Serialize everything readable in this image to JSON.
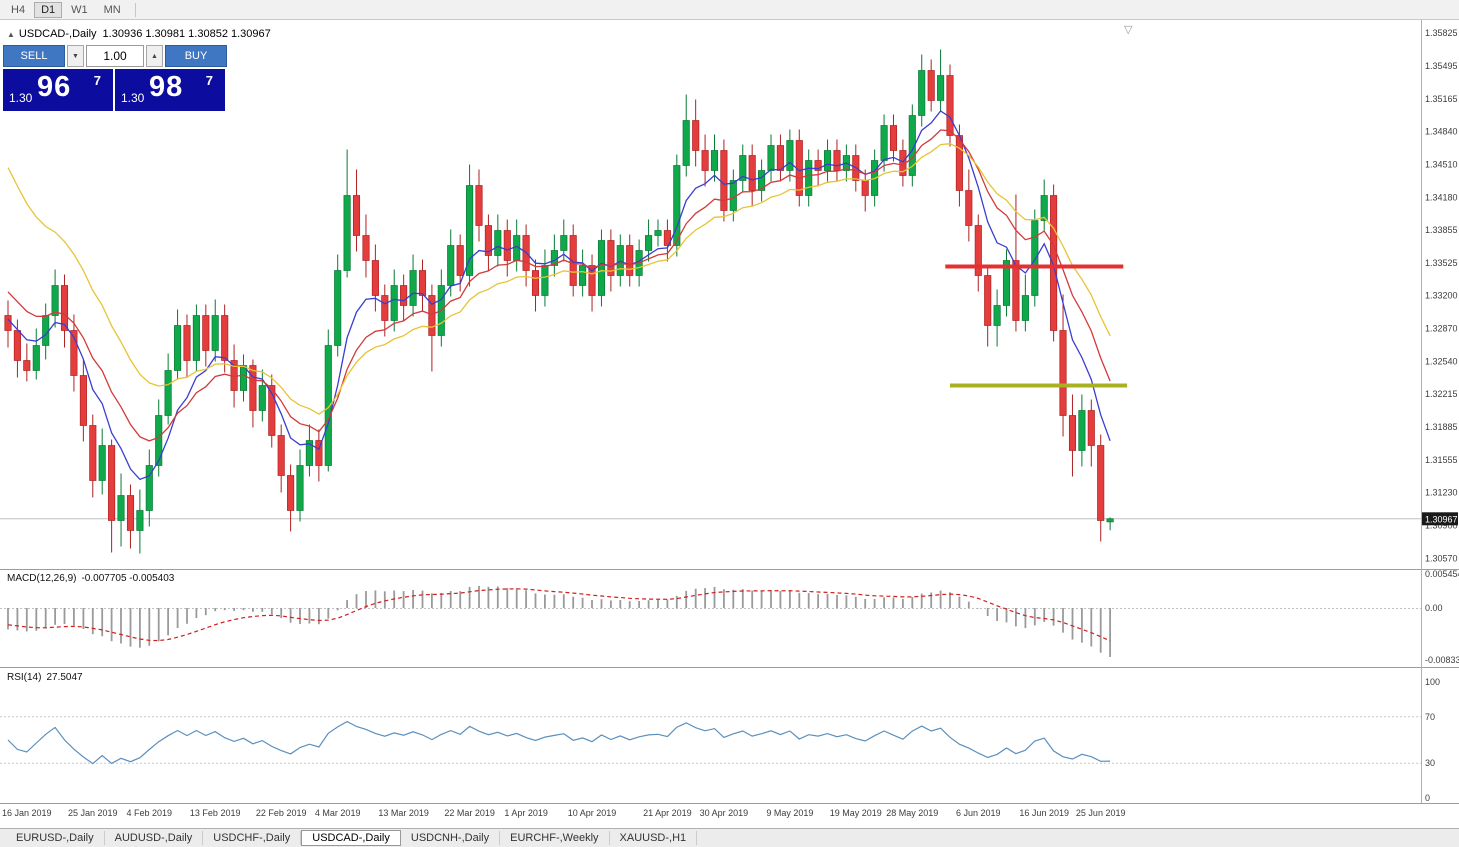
{
  "toolbar": {
    "timeframes": [
      "H4",
      "D1",
      "W1",
      "MN"
    ],
    "active": "D1"
  },
  "chart_header": {
    "marker": "▲",
    "title": "USDCAD-,Daily",
    "ohlc": "1.30936 1.30981 1.30852 1.30967",
    "scroll_marker": "▽"
  },
  "trade_panel": {
    "sell_label": "SELL",
    "buy_label": "BUY",
    "volume": "1.00",
    "spin_down": "▼",
    "spin_up": "▲",
    "sell_price": {
      "small": "1.30",
      "big": "96",
      "sup": "7"
    },
    "buy_price": {
      "small": "1.30",
      "big": "98",
      "sup": "7"
    }
  },
  "indicators": {
    "macd": {
      "label": "MACD(12,26,9)",
      "values": "-0.007705 -0.005403",
      "scale": [
        "0.0054545",
        "0.00",
        "-0.008332"
      ]
    },
    "rsi": {
      "label": "RSI(14)",
      "value": "27.5047",
      "scale": [
        "100",
        "70",
        "30",
        "0"
      ]
    }
  },
  "price_scale": {
    "bid_badge": "1.30967",
    "ticks": [
      "1.35825",
      "1.35495",
      "1.35165",
      "1.34840",
      "1.34510",
      "1.34180",
      "1.33855",
      "1.33525",
      "1.33200",
      "1.32870",
      "1.32540",
      "1.32215",
      "1.31885",
      "1.31555",
      "1.31230",
      "1.30900",
      "1.30570"
    ]
  },
  "tabs": {
    "items": [
      "EURUSD-,Daily",
      "AUDUSD-,Daily",
      "USDCHF-,Daily",
      "USDCAD-,Daily",
      "USDCNH-,Daily",
      "EURCHF-,Weekly",
      "XAUUSD-,H1"
    ],
    "active_index": 3
  },
  "chart_data": {
    "type": "candlestick",
    "title": "USDCAD-,Daily",
    "symbol": "USDCAD-",
    "timeframe": "Daily",
    "bid": 1.30967,
    "current_ohlc": {
      "open": 1.30936,
      "high": 1.30981,
      "low": 1.30852,
      "close": 1.30967
    },
    "y_axis": {
      "top": 1.35825,
      "bottom": 1.3057,
      "grid": "off"
    },
    "candles": [
      [
        "2019.01.14",
        1.33,
        1.3315,
        1.3268,
        1.3285
      ],
      [
        "2019.01.15",
        1.3285,
        1.3296,
        1.3238,
        1.3255
      ],
      [
        "2019.01.16",
        1.3255,
        1.3272,
        1.3234,
        1.3245
      ],
      [
        "2019.01.17",
        1.3245,
        1.3287,
        1.3236,
        1.327
      ],
      [
        "2019.01.18",
        1.327,
        1.3312,
        1.3256,
        1.33
      ],
      [
        "2019.01.21",
        1.33,
        1.3346,
        1.3288,
        1.333
      ],
      [
        "2019.01.22",
        1.333,
        1.3341,
        1.3268,
        1.3285
      ],
      [
        "2019.01.23",
        1.3285,
        1.3301,
        1.3224,
        1.324
      ],
      [
        "2019.01.24",
        1.324,
        1.3256,
        1.3174,
        1.319
      ],
      [
        "2019.01.25",
        1.319,
        1.3201,
        1.3118,
        1.3135
      ],
      [
        "2019.01.28",
        1.3135,
        1.3187,
        1.3121,
        1.317
      ],
      [
        "2019.01.29",
        1.317,
        1.3176,
        1.3063,
        1.3095
      ],
      [
        "2019.01.30",
        1.3095,
        1.3142,
        1.3069,
        1.312
      ],
      [
        "2019.01.31",
        1.312,
        1.3131,
        1.3067,
        1.3085
      ],
      [
        "2019.02.01",
        1.3085,
        1.3126,
        1.3062,
        1.3105
      ],
      [
        "2019.02.04",
        1.3105,
        1.3166,
        1.3089,
        1.315
      ],
      [
        "2019.02.05",
        1.315,
        1.3216,
        1.3139,
        1.32
      ],
      [
        "2019.02.06",
        1.32,
        1.3262,
        1.3191,
        1.3245
      ],
      [
        "2019.02.07",
        1.3245,
        1.3306,
        1.3236,
        1.329
      ],
      [
        "2019.02.08",
        1.329,
        1.3301,
        1.3238,
        1.3255
      ],
      [
        "2019.02.11",
        1.3255,
        1.3311,
        1.3244,
        1.33
      ],
      [
        "2019.02.12",
        1.33,
        1.3311,
        1.3249,
        1.3265
      ],
      [
        "2019.02.13",
        1.3265,
        1.3316,
        1.3254,
        1.33
      ],
      [
        "2019.02.14",
        1.33,
        1.3311,
        1.3243,
        1.3255
      ],
      [
        "2019.02.15",
        1.3255,
        1.3271,
        1.3208,
        1.3225
      ],
      [
        "2019.02.18",
        1.3225,
        1.3261,
        1.3214,
        1.325
      ],
      [
        "2019.02.19",
        1.325,
        1.3256,
        1.3188,
        1.3205
      ],
      [
        "2019.02.20",
        1.3205,
        1.3246,
        1.3194,
        1.323
      ],
      [
        "2019.02.21",
        1.323,
        1.3241,
        1.3168,
        1.318
      ],
      [
        "2019.02.22",
        1.318,
        1.3191,
        1.3123,
        1.314
      ],
      [
        "2019.02.25",
        1.314,
        1.3151,
        1.3084,
        1.3105
      ],
      [
        "2019.02.26",
        1.3105,
        1.3166,
        1.3094,
        1.315
      ],
      [
        "2019.02.27",
        1.315,
        1.3191,
        1.3139,
        1.3175
      ],
      [
        "2019.02.28",
        1.3175,
        1.3186,
        1.3134,
        1.315
      ],
      [
        "2019.03.01",
        1.315,
        1.3286,
        1.3144,
        1.327
      ],
      [
        "2019.03.04",
        1.327,
        1.3361,
        1.3259,
        1.3345
      ],
      [
        "2019.03.05",
        1.3345,
        1.3466,
        1.3338,
        1.342
      ],
      [
        "2019.03.06",
        1.342,
        1.3446,
        1.3364,
        1.338
      ],
      [
        "2019.03.07",
        1.338,
        1.3401,
        1.3338,
        1.3355
      ],
      [
        "2019.03.08",
        1.3355,
        1.3371,
        1.3304,
        1.332
      ],
      [
        "2019.03.11",
        1.332,
        1.3331,
        1.3279,
        1.3295
      ],
      [
        "2019.03.12",
        1.3295,
        1.3346,
        1.3284,
        1.333
      ],
      [
        "2019.03.13",
        1.333,
        1.3341,
        1.3294,
        1.331
      ],
      [
        "2019.03.14",
        1.331,
        1.3361,
        1.3299,
        1.3345
      ],
      [
        "2019.03.15",
        1.3345,
        1.3356,
        1.3304,
        1.332
      ],
      [
        "2019.03.18",
        1.332,
        1.3331,
        1.3244,
        1.328
      ],
      [
        "2019.03.19",
        1.328,
        1.3346,
        1.3269,
        1.333
      ],
      [
        "2019.03.20",
        1.333,
        1.3386,
        1.3319,
        1.337
      ],
      [
        "2019.03.21",
        1.337,
        1.3381,
        1.3324,
        1.334
      ],
      [
        "2019.03.22",
        1.334,
        1.3451,
        1.3329,
        1.343
      ],
      [
        "2019.03.25",
        1.343,
        1.3446,
        1.3374,
        1.339
      ],
      [
        "2019.03.26",
        1.339,
        1.3401,
        1.3344,
        1.336
      ],
      [
        "2019.03.27",
        1.336,
        1.3401,
        1.3349,
        1.3385
      ],
      [
        "2019.03.28",
        1.3385,
        1.3396,
        1.3339,
        1.3355
      ],
      [
        "2019.03.29",
        1.3355,
        1.3396,
        1.3344,
        1.338
      ],
      [
        "2019.04.01",
        1.338,
        1.3391,
        1.3329,
        1.3345
      ],
      [
        "2019.04.02",
        1.3345,
        1.3356,
        1.3304,
        1.332
      ],
      [
        "2019.04.03",
        1.332,
        1.3366,
        1.3309,
        1.335
      ],
      [
        "2019.04.04",
        1.335,
        1.3381,
        1.3339,
        1.3365
      ],
      [
        "2019.04.05",
        1.3365,
        1.3396,
        1.3354,
        1.338
      ],
      [
        "2019.04.08",
        1.338,
        1.3391,
        1.3319,
        1.333
      ],
      [
        "2019.04.09",
        1.333,
        1.3366,
        1.3319,
        1.335
      ],
      [
        "2019.04.10",
        1.335,
        1.3361,
        1.3304,
        1.332
      ],
      [
        "2019.04.11",
        1.332,
        1.3386,
        1.3309,
        1.3375
      ],
      [
        "2019.04.12",
        1.3375,
        1.3386,
        1.3324,
        1.334
      ],
      [
        "2019.04.15",
        1.334,
        1.3381,
        1.3329,
        1.337
      ],
      [
        "2019.04.16",
        1.337,
        1.3381,
        1.3329,
        1.334
      ],
      [
        "2019.04.17",
        1.334,
        1.3376,
        1.3329,
        1.3365
      ],
      [
        "2019.04.18",
        1.3365,
        1.3396,
        1.3354,
        1.338
      ],
      [
        "2019.04.19",
        1.338,
        1.3396,
        1.3369,
        1.3385
      ],
      [
        "2019.04.22",
        1.3385,
        1.3396,
        1.3354,
        1.337
      ],
      [
        "2019.04.23",
        1.337,
        1.3461,
        1.3359,
        1.345
      ],
      [
        "2019.04.24",
        1.345,
        1.3521,
        1.3439,
        1.3495
      ],
      [
        "2019.04.25",
        1.3495,
        1.3516,
        1.3449,
        1.3465
      ],
      [
        "2019.04.26",
        1.3465,
        1.3481,
        1.3429,
        1.3445
      ],
      [
        "2019.04.29",
        1.3445,
        1.3481,
        1.3434,
        1.3465
      ],
      [
        "2019.04.30",
        1.3465,
        1.3476,
        1.3394,
        1.3405
      ],
      [
        "2019.05.01",
        1.3405,
        1.3446,
        1.3394,
        1.3435
      ],
      [
        "2019.05.02",
        1.3435,
        1.3471,
        1.3424,
        1.346
      ],
      [
        "2019.05.03",
        1.346,
        1.3471,
        1.3409,
        1.3425
      ],
      [
        "2019.05.06",
        1.3425,
        1.3456,
        1.3414,
        1.3445
      ],
      [
        "2019.05.07",
        1.3445,
        1.3481,
        1.3434,
        1.347
      ],
      [
        "2019.05.08",
        1.347,
        1.3481,
        1.3434,
        1.3445
      ],
      [
        "2019.05.09",
        1.3445,
        1.3486,
        1.3434,
        1.3475
      ],
      [
        "2019.05.10",
        1.3475,
        1.3486,
        1.3409,
        1.342
      ],
      [
        "2019.05.13",
        1.342,
        1.3466,
        1.3409,
        1.3455
      ],
      [
        "2019.05.14",
        1.3455,
        1.3466,
        1.3429,
        1.3445
      ],
      [
        "2019.05.15",
        1.3445,
        1.3476,
        1.3434,
        1.3465
      ],
      [
        "2019.05.16",
        1.3465,
        1.3476,
        1.3434,
        1.3445
      ],
      [
        "2019.05.17",
        1.3445,
        1.3471,
        1.3434,
        1.346
      ],
      [
        "2019.05.20",
        1.346,
        1.3471,
        1.3424,
        1.3435
      ],
      [
        "2019.05.21",
        1.3435,
        1.3446,
        1.3404,
        1.342
      ],
      [
        "2019.05.22",
        1.342,
        1.3466,
        1.3409,
        1.3455
      ],
      [
        "2019.05.23",
        1.3455,
        1.3501,
        1.3444,
        1.349
      ],
      [
        "2019.05.24",
        1.349,
        1.3501,
        1.3454,
        1.3465
      ],
      [
        "2019.05.27",
        1.3465,
        1.3476,
        1.3429,
        1.344
      ],
      [
        "2019.05.28",
        1.344,
        1.3511,
        1.3429,
        1.35
      ],
      [
        "2019.05.29",
        1.35,
        1.3561,
        1.3489,
        1.3545
      ],
      [
        "2019.05.30",
        1.3545,
        1.3556,
        1.3504,
        1.3515
      ],
      [
        "2019.05.31",
        1.3515,
        1.3566,
        1.3504,
        1.354
      ],
      [
        "2019.06.03",
        1.354,
        1.3551,
        1.3469,
        1.348
      ],
      [
        "2019.06.04",
        1.348,
        1.3491,
        1.3409,
        1.3425
      ],
      [
        "2019.06.05",
        1.3425,
        1.3446,
        1.3374,
        1.339
      ],
      [
        "2019.06.06",
        1.339,
        1.3401,
        1.3324,
        1.334
      ],
      [
        "2019.06.07",
        1.334,
        1.3351,
        1.3269,
        1.329
      ],
      [
        "2019.06.10",
        1.329,
        1.3326,
        1.3269,
        1.331
      ],
      [
        "2019.06.11",
        1.331,
        1.3366,
        1.3299,
        1.3355
      ],
      [
        "2019.06.12",
        1.3355,
        1.3421,
        1.3284,
        1.3295
      ],
      [
        "2019.06.13",
        1.3295,
        1.3341,
        1.3284,
        1.332
      ],
      [
        "2019.06.14",
        1.332,
        1.3406,
        1.3309,
        1.3395
      ],
      [
        "2019.06.17",
        1.3395,
        1.3436,
        1.3384,
        1.342
      ],
      [
        "2019.06.18",
        1.342,
        1.3431,
        1.3274,
        1.3285
      ],
      [
        "2019.06.19",
        1.3285,
        1.3321,
        1.3179,
        1.32
      ],
      [
        "2019.06.20",
        1.32,
        1.3221,
        1.3139,
        1.3165
      ],
      [
        "2019.06.21",
        1.3165,
        1.3221,
        1.3149,
        1.3205
      ],
      [
        "2019.06.24",
        1.3205,
        1.3216,
        1.3149,
        1.317
      ],
      [
        "2019.06.25",
        1.317,
        1.3181,
        1.3074,
        1.3095
      ],
      [
        "2019.06.26",
        1.30936,
        1.30981,
        1.30852,
        1.30967
      ]
    ],
    "x_labels": [
      {
        "i": 2,
        "t": "16 Jan 2019"
      },
      {
        "i": 9,
        "t": "25 Jan 2019"
      },
      {
        "i": 15,
        "t": "4 Feb 2019"
      },
      {
        "i": 22,
        "t": "13 Feb 2019"
      },
      {
        "i": 29,
        "t": "22 Feb 2019"
      },
      {
        "i": 35,
        "t": "4 Mar 2019"
      },
      {
        "i": 42,
        "t": "13 Mar 2019"
      },
      {
        "i": 49,
        "t": "22 Mar 2019"
      },
      {
        "i": 55,
        "t": "1 Apr 2019"
      },
      {
        "i": 62,
        "t": "10 Apr 2019"
      },
      {
        "i": 70,
        "t": "21 Apr 2019"
      },
      {
        "i": 76,
        "t": "30 Apr 2019"
      },
      {
        "i": 83,
        "t": "9 May 2019"
      },
      {
        "i": 90,
        "t": "19 May 2019"
      },
      {
        "i": 96,
        "t": "28 May 2019"
      },
      {
        "i": 103,
        "t": "6 Jun 2019"
      },
      {
        "i": 110,
        "t": "16 Jun 2019"
      },
      {
        "i": 116,
        "t": "25 Jun 2019"
      }
    ],
    "moving_averages": [
      {
        "period": 7,
        "color": "#3a3ed0",
        "seed": 1.33
      },
      {
        "period": 13,
        "color": "#d23a3a",
        "seed": 1.333
      },
      {
        "period": 20,
        "color": "#e7c435",
        "seed": 1.3465
      }
    ],
    "hlines": [
      {
        "price": 1.3349,
        "from": 99.5,
        "to": 118.4,
        "color": "#e43030",
        "width": 4
      },
      {
        "price": 1.323,
        "from": 100.0,
        "to": 118.8,
        "color": "#a9b021",
        "width": 4
      }
    ],
    "macd_params": {
      "fast": 12,
      "slow": 26,
      "signal": 9,
      "seeds": {
        "fast": 1.331,
        "slow": 1.3345,
        "signal": -0.0025
      }
    },
    "rsi_params": {
      "period": 14
    },
    "colors": {
      "up": "#0fa84a",
      "up_edge": "#077a35",
      "down": "#e43d3d",
      "down_edge": "#ae2020",
      "macd_hist": "#9a9a9a",
      "macd_signal": "#d02020",
      "rsi_line": "#5b8fbe",
      "bid_line": "#c0c0c0",
      "badge_bg": "#1a1a1a"
    }
  }
}
